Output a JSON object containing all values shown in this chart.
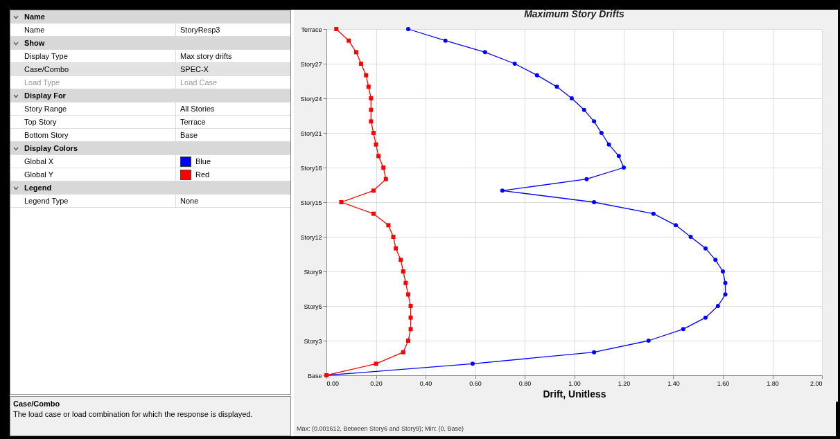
{
  "chart_data": [
    {
      "type": "other",
      "annotations": [
        "Name",
        "Name",
        "StoryResp3",
        "Show",
        "Display Type",
        "Max story drifts",
        "Case/Combo",
        "SPEC-X",
        "Load Type",
        "Load Case",
        "Display For",
        "Story Range",
        "All Stories",
        "Top Story",
        "Terrace",
        "Bottom Story",
        "Base",
        "Display Colors",
        "Global X",
        "Blue",
        "Global Y",
        "Red",
        "Legend",
        "Legend Type",
        "None",
        "Case/Combo",
        "The load case or load combination for which the response is displayed."
      ]
    },
    {
      "type": "line",
      "title": "Maximum Story Drifts",
      "xlabel": "Drift, Unitless",
      "orientation": "horizontal",
      "grid": true,
      "categories": [
        "Terrace",
        null,
        null,
        "Story27",
        null,
        null,
        "Story24",
        null,
        null,
        "Story21",
        null,
        null,
        "Story18",
        null,
        null,
        "Story15",
        null,
        null,
        "Story12",
        null,
        null,
        "Story9",
        null,
        null,
        "Story6",
        null,
        null,
        "Story3",
        null,
        null,
        "Base"
      ],
      "xlim": [
        0,
        2
      ],
      "xticks": [
        {
          "value": 0,
          "label": "0.00"
        },
        {
          "value": 0.2,
          "label": "0.20"
        },
        {
          "value": 0.4,
          "label": "0.40"
        },
        {
          "value": 0.6,
          "label": "0.60"
        },
        {
          "value": 0.8,
          "label": "0.80"
        },
        {
          "value": 1,
          "label": "1.00"
        },
        {
          "value": 1.2,
          "label": "1.20"
        },
        {
          "value": 1.4,
          "label": "1.40"
        },
        {
          "value": 1.6,
          "label": "1.60"
        },
        {
          "value": 1.8,
          "label": "1.80"
        },
        {
          "value": 2,
          "label": "2.00"
        }
      ],
      "series": [
        {
          "color": "#0000ff",
          "marker": "circle",
          "values": [
            0.33,
            0.48,
            0.64,
            0.76,
            0.85,
            0.93,
            0.99,
            1.04,
            1.08,
            1.11,
            1.14,
            1.18,
            1.2,
            1.05,
            0.71,
            1.08,
            1.32,
            1.41,
            1.47,
            1.53,
            1.57,
            1.6,
            1.61,
            1.61,
            1.58,
            1.53,
            1.44,
            1.3,
            1.08,
            0.59,
            0
          ]
        },
        {
          "color": "#ff0000",
          "marker": "square",
          "values": [
            0.04,
            0.09,
            0.12,
            0.14,
            0.16,
            0.17,
            0.18,
            0.18,
            0.18,
            0.19,
            0.2,
            0.21,
            0.23,
            0.24,
            0.19,
            0.06,
            0.19,
            0.25,
            0.27,
            0.28,
            0.3,
            0.31,
            0.32,
            0.33,
            0.34,
            0.34,
            0.34,
            0.33,
            0.31,
            0.2,
            0
          ]
        }
      ],
      "annotations": [
        "Max: (0.001612, Between Story6 and Story9);  Min: (0, Base)"
      ]
    }
  ]
}
